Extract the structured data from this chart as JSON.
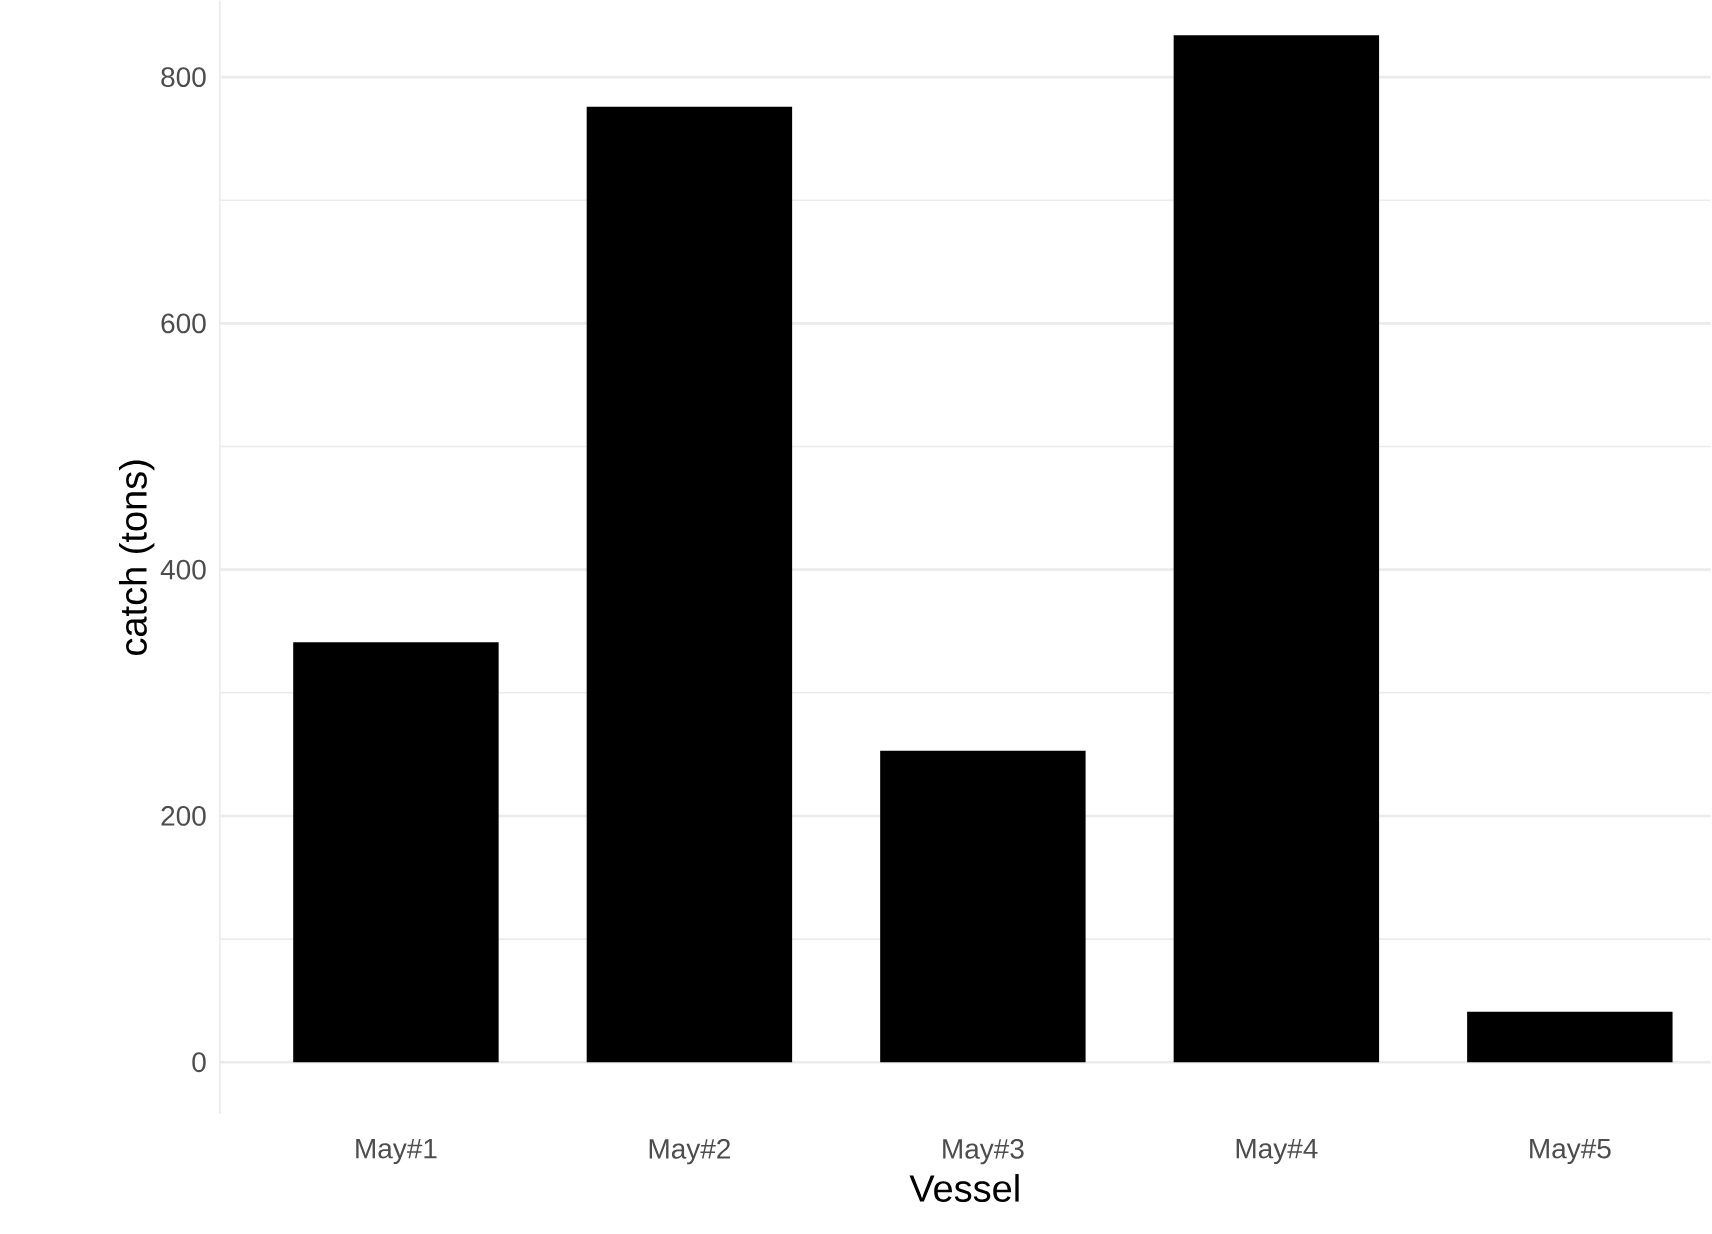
{
  "chart_data": {
    "type": "bar",
    "xlabel": "Vessel",
    "ylabel": "catch (tons)",
    "categories": [
      "May#1",
      "May#2",
      "May#3",
      "May#4",
      "May#5"
    ],
    "values": [
      341,
      776,
      253,
      834,
      41
    ],
    "color": "#000000",
    "ylim": [
      -42,
      862
    ],
    "yticks": [
      0,
      200,
      400,
      600,
      800
    ],
    "grid": "y"
  }
}
